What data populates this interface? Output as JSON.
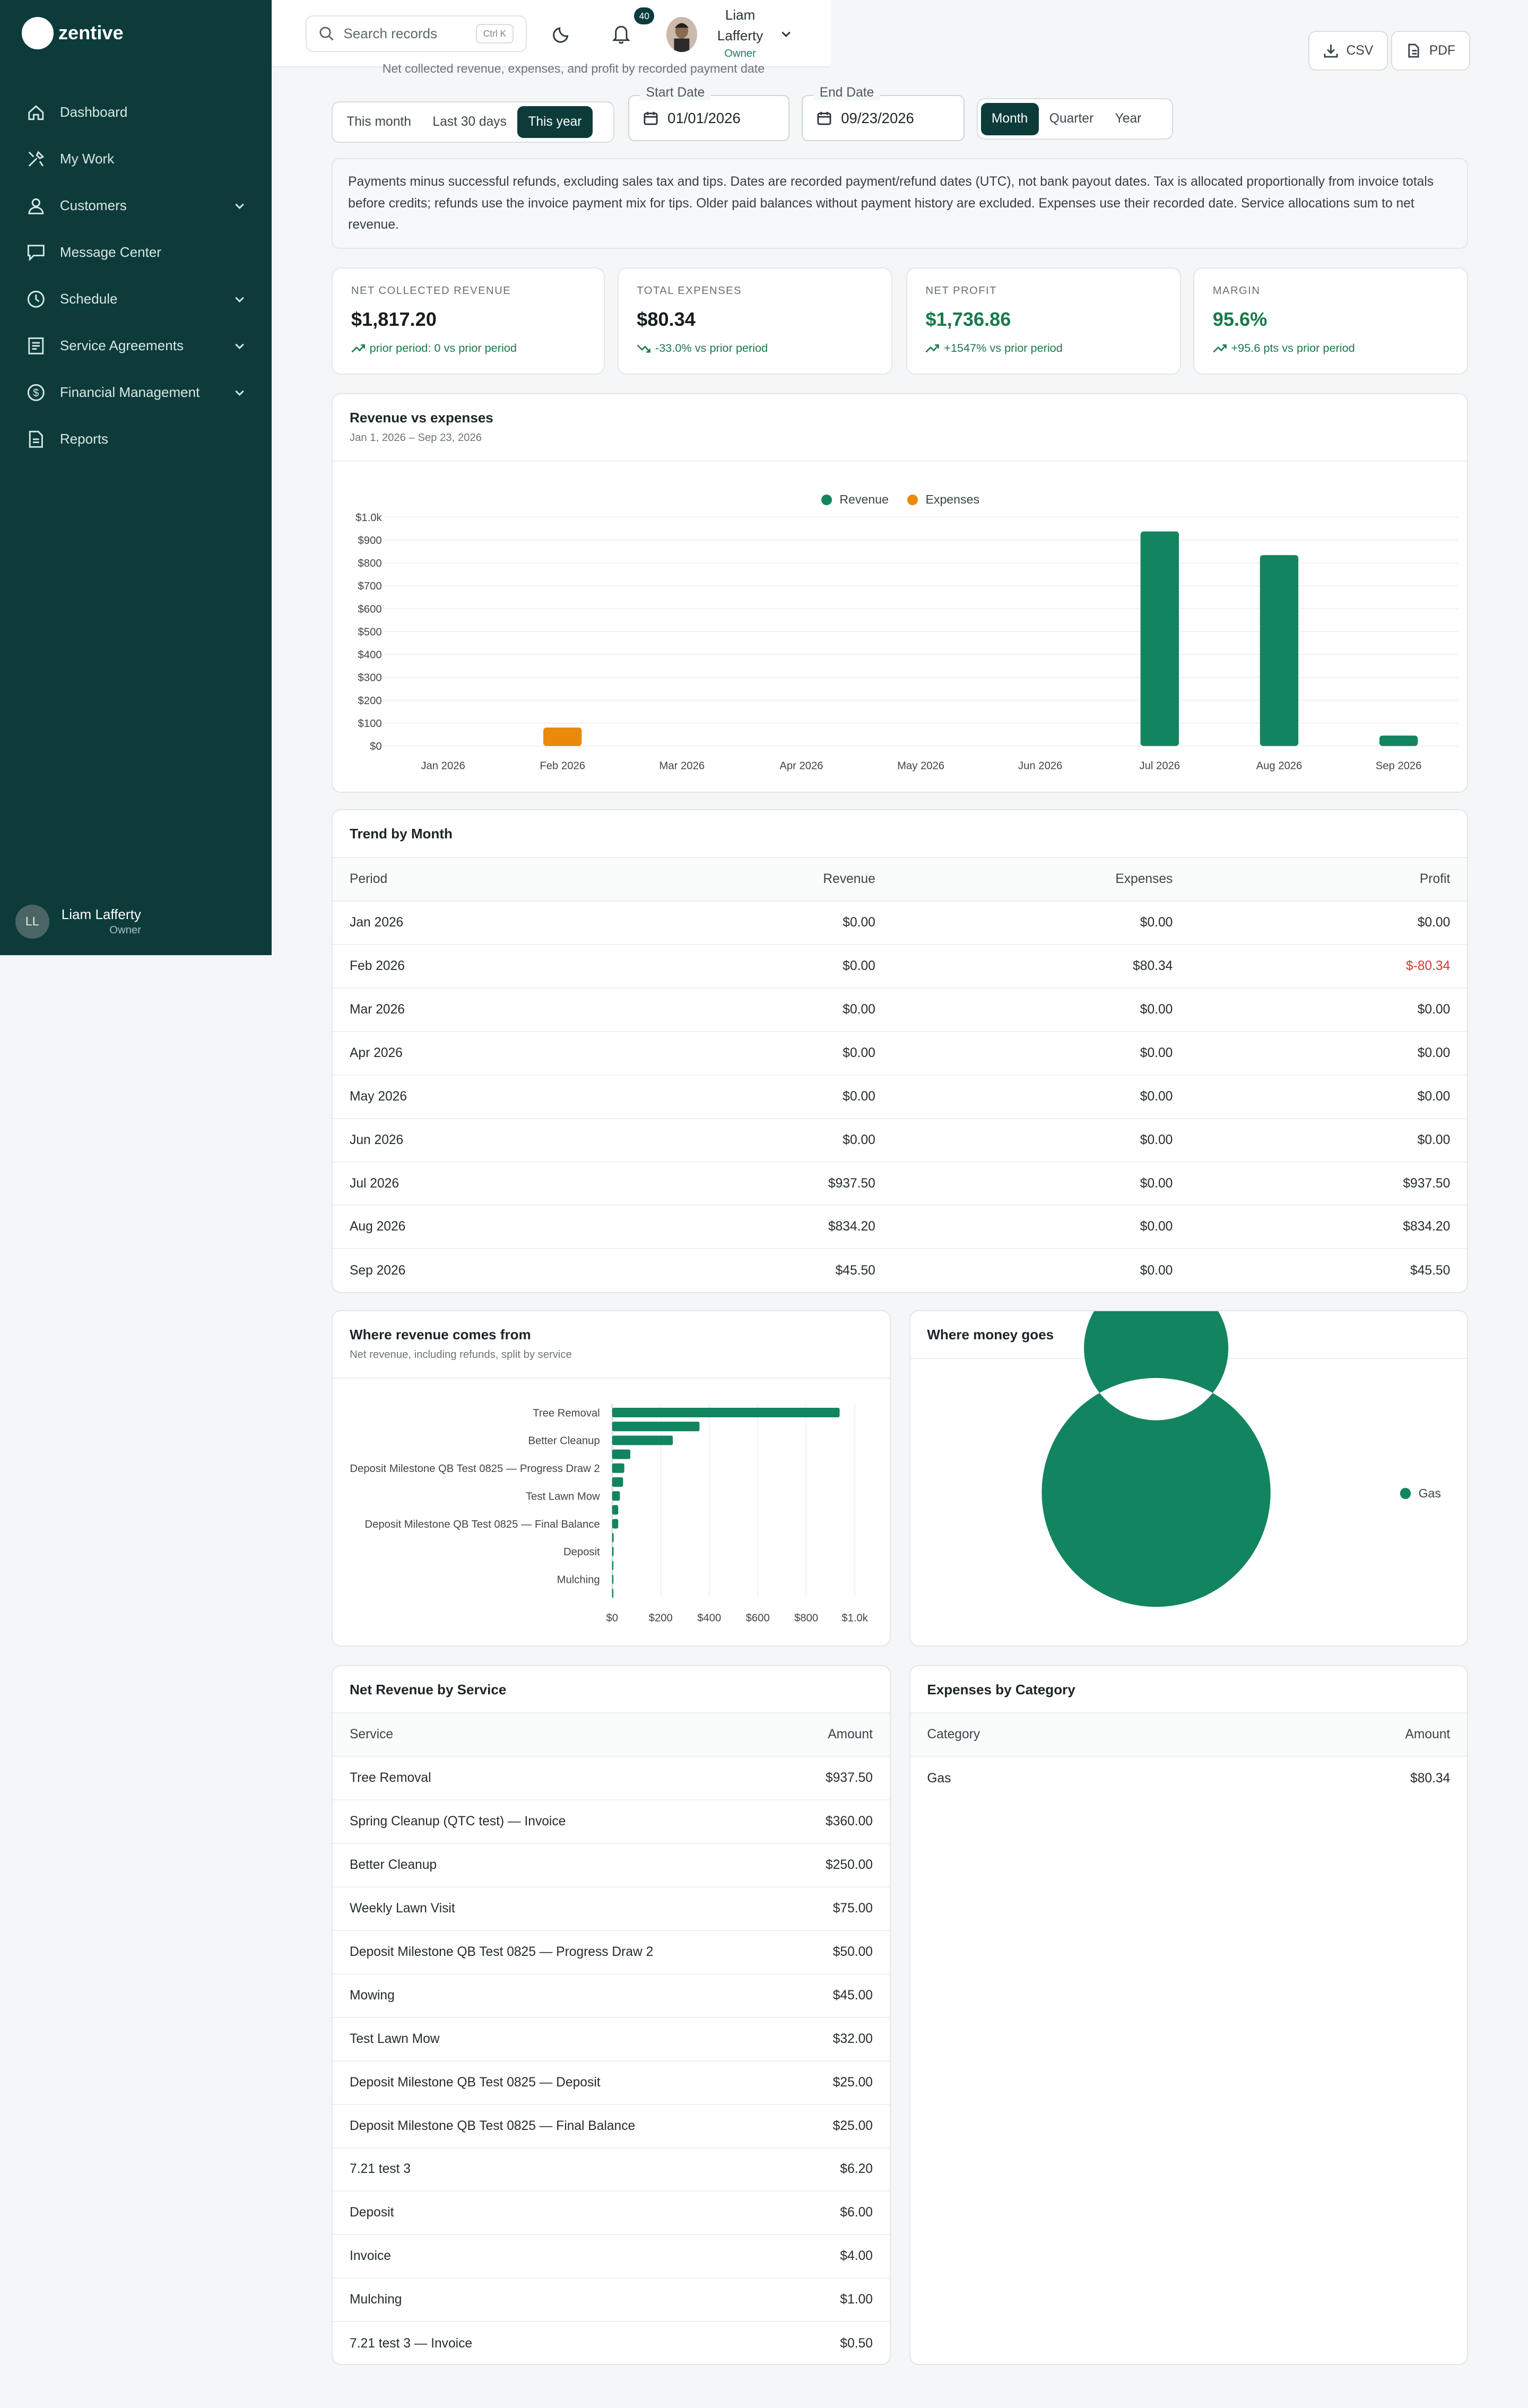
{
  "brand": {
    "name": "zentive"
  },
  "sidebar": {
    "items": [
      {
        "label": "Dashboard",
        "icon": "home-icon"
      },
      {
        "label": "My Work",
        "icon": "tools-icon"
      },
      {
        "label": "Customers",
        "icon": "users-icon",
        "expandable": true
      },
      {
        "label": "Message Center",
        "icon": "chat-icon"
      },
      {
        "label": "Schedule",
        "icon": "clock-icon",
        "expandable": true
      },
      {
        "label": "Service Agreements",
        "icon": "agreement-icon",
        "expandable": true
      },
      {
        "label": "Financial Management",
        "icon": "dollar-icon",
        "expandable": true
      },
      {
        "label": "Reports",
        "icon": "report-icon"
      }
    ],
    "user": {
      "initials": "LL",
      "name": "Liam Lafferty",
      "role": "Owner"
    }
  },
  "topbar": {
    "search_placeholder": "Search records",
    "search_shortcut": "Ctrl K",
    "notifications": "40",
    "user_first": "Liam",
    "user_last": "Lafferty",
    "user_role": "Owner"
  },
  "page": {
    "subtitle": "Net collected revenue, expenses, and profit by recorded payment date",
    "export_csv": "CSV",
    "export_pdf": "PDF"
  },
  "filters": {
    "ranges": [
      "This month",
      "Last 30 days",
      "This year"
    ],
    "active_range": "This year",
    "start_label": "Start Date",
    "start_value": "01/01/2026",
    "end_label": "End Date",
    "end_value": "09/23/2026",
    "granularity": [
      "Month",
      "Quarter",
      "Year"
    ],
    "active_granularity": "Month"
  },
  "note": "Payments minus successful refunds, excluding sales tax and tips. Dates are recorded payment/refund dates (UTC), not bank payout dates. Tax is allocated proportionally from invoice totals before credits; refunds use the invoice payment mix for tips. Older paid balances without payment history are excluded. Expenses use their recorded date. Service allocations sum to net revenue.",
  "kpis": [
    {
      "label": "NET COLLECTED REVENUE",
      "value": "$1,817.20",
      "delta": "prior period: 0 vs prior period",
      "trend": "up",
      "green": false
    },
    {
      "label": "TOTAL EXPENSES",
      "value": "$80.34",
      "delta": "-33.0% vs prior period",
      "trend": "down",
      "green": false
    },
    {
      "label": "NET PROFIT",
      "value": "$1,736.86",
      "delta": "+1547% vs prior period",
      "trend": "up",
      "green": true
    },
    {
      "label": "MARGIN",
      "value": "95.6%",
      "delta": "+95.6 pts vs prior period",
      "trend": "up",
      "green": true
    }
  ],
  "colors": {
    "revenue": "#138460",
    "expenses": "#ea8a0b",
    "primary": "#0c3b3a"
  },
  "revenue_chart": {
    "title": "Revenue vs expenses",
    "subtitle": "Jan 1, 2026 – Sep 23, 2026",
    "y_ticks": [
      "$0",
      "$100",
      "$200",
      "$300",
      "$400",
      "$500",
      "$600",
      "$700",
      "$800",
      "$900",
      "$1.0k"
    ]
  },
  "trend_table": {
    "title": "Trend by Month",
    "columns": [
      "Period",
      "Revenue",
      "Expenses",
      "Profit"
    ],
    "rows": [
      [
        "Jan 2026",
        "$0.00",
        "$0.00",
        "$0.00"
      ],
      [
        "Feb 2026",
        "$0.00",
        "$80.34",
        "$-80.34"
      ],
      [
        "Mar 2026",
        "$0.00",
        "$0.00",
        "$0.00"
      ],
      [
        "Apr 2026",
        "$0.00",
        "$0.00",
        "$0.00"
      ],
      [
        "May 2026",
        "$0.00",
        "$0.00",
        "$0.00"
      ],
      [
        "Jun 2026",
        "$0.00",
        "$0.00",
        "$0.00"
      ],
      [
        "Jul 2026",
        "$937.50",
        "$0.00",
        "$937.50"
      ],
      [
        "Aug 2026",
        "$834.20",
        "$0.00",
        "$834.20"
      ],
      [
        "Sep 2026",
        "$45.50",
        "$0.00",
        "$45.50"
      ]
    ]
  },
  "service_chart": {
    "title": "Where revenue comes from",
    "subtitle": "Net revenue, including refunds, split by service",
    "x_ticks": [
      "$0",
      "$200",
      "$400",
      "$600",
      "$800",
      "$1.0k"
    ]
  },
  "expense_chart": {
    "title": "Where money goes"
  },
  "service_table": {
    "title": "Net Revenue by Service",
    "columns": [
      "Service",
      "Amount"
    ],
    "rows": [
      [
        "Tree Removal",
        "$937.50"
      ],
      [
        "Spring Cleanup (QTC test) — Invoice",
        "$360.00"
      ],
      [
        "Better Cleanup",
        "$250.00"
      ],
      [
        "Weekly Lawn Visit",
        "$75.00"
      ],
      [
        "Deposit Milestone QB Test 0825 — Progress Draw 2",
        "$50.00"
      ],
      [
        "Mowing",
        "$45.00"
      ],
      [
        "Test Lawn Mow",
        "$32.00"
      ],
      [
        "Deposit Milestone QB Test 0825 — Deposit",
        "$25.00"
      ],
      [
        "Deposit Milestone QB Test 0825 — Final Balance",
        "$25.00"
      ],
      [
        "7.21 test 3",
        "$6.20"
      ],
      [
        "Deposit",
        "$6.00"
      ],
      [
        "Invoice",
        "$4.00"
      ],
      [
        "Mulching",
        "$1.00"
      ],
      [
        "7.21 test 3 — Invoice",
        "$0.50"
      ]
    ]
  },
  "category_table": {
    "title": "Expenses by Category",
    "columns": [
      "Category",
      "Amount"
    ],
    "rows": [
      [
        "Gas",
        "$80.34"
      ]
    ]
  },
  "chart_data": [
    {
      "type": "bar",
      "title": "Revenue vs expenses",
      "categories": [
        "Jan 2026",
        "Feb 2026",
        "Mar 2026",
        "Apr 2026",
        "May 2026",
        "Jun 2026",
        "Jul 2026",
        "Aug 2026",
        "Sep 2026"
      ],
      "series": [
        {
          "name": "Revenue",
          "values": [
            0,
            0,
            0,
            0,
            0,
            0,
            937.5,
            834.2,
            45.5
          ]
        },
        {
          "name": "Expenses",
          "values": [
            0,
            80.34,
            0,
            0,
            0,
            0,
            0,
            0,
            0
          ]
        }
      ],
      "ylim": [
        0,
        1000
      ],
      "grid": true,
      "legend": "top-center"
    },
    {
      "type": "bar",
      "orientation": "horizontal",
      "title": "Where revenue comes from",
      "categories": [
        "Tree Removal",
        "Spring Cleanup (QTC test) — Invoice",
        "Better Cleanup",
        "Weekly Lawn Visit",
        "Deposit Milestone QB Test 0825 — Progress Draw 2",
        "Mowing",
        "Test Lawn Mow",
        "Deposit Milestone QB Test 0825 — Deposit",
        "Deposit Milestone QB Test 0825 — Final Balance",
        "7.21 test 3",
        "Deposit",
        "Invoice",
        "Mulching",
        "7.21 test 3 — Invoice"
      ],
      "shown_labels": [
        "Tree Removal",
        "Better Cleanup",
        "Deposit Milestone QB Test 0825 — Progress Draw 2",
        "Test Lawn Mow",
        "Deposit Milestone QB Test 0825 — Final Balance",
        "Deposit",
        "Mulching"
      ],
      "values": [
        937.5,
        360,
        250,
        75,
        50,
        45,
        32,
        25,
        25,
        6.2,
        6,
        4,
        1,
        0.5
      ],
      "xlim": [
        0,
        1000
      ],
      "grid": true
    },
    {
      "type": "pie",
      "title": "Where money goes",
      "categories": [
        "Gas"
      ],
      "values": [
        80.34
      ],
      "legend": "right"
    }
  ]
}
